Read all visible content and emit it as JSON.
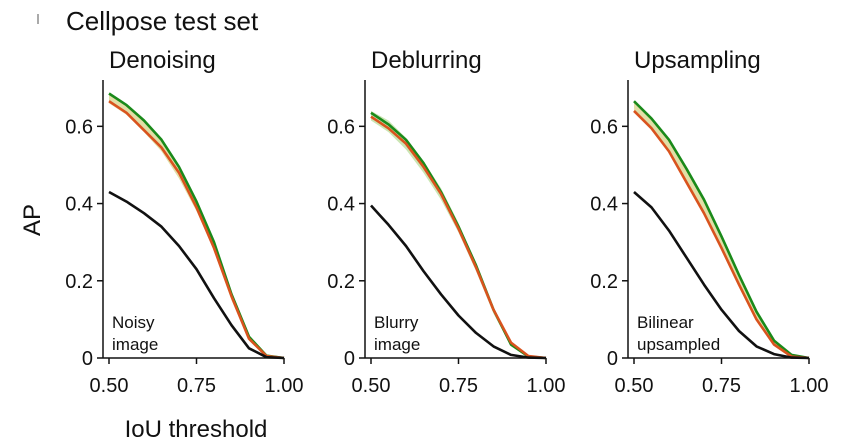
{
  "figure": {
    "title": "Cellpose test set",
    "ylabel": "AP",
    "xlabel": "IoU threshold"
  },
  "chart_data": [
    {
      "type": "line",
      "title": "Denoising",
      "annotation": [
        "Noisy",
        "image"
      ],
      "xlabel": "IoU threshold",
      "ylabel": "AP",
      "xlim": [
        0.5,
        1.0
      ],
      "ylim": [
        0,
        0.72
      ],
      "xticks": [
        "0.50",
        "0.75",
        "1.00"
      ],
      "yticks": [
        "0",
        "0.2",
        "0.4",
        "0.6"
      ],
      "x": [
        0.5,
        0.55,
        0.6,
        0.65,
        0.7,
        0.75,
        0.8,
        0.85,
        0.9,
        0.95,
        1.0
      ],
      "series": [
        {
          "color": "#d7d48a",
          "band": true,
          "upper": [
            0.685,
            0.655,
            0.615,
            0.565,
            0.495,
            0.405,
            0.3,
            0.165,
            0.055,
            0.006,
            0.0
          ],
          "lower": [
            0.66,
            0.63,
            0.585,
            0.535,
            0.465,
            0.38,
            0.28,
            0.15,
            0.045,
            0.003,
            0.0
          ]
        },
        {
          "color": "#1a8a1a",
          "values": [
            0.685,
            0.655,
            0.615,
            0.565,
            0.495,
            0.405,
            0.3,
            0.165,
            0.055,
            0.006,
            0.0
          ]
        },
        {
          "color": "#d9531e",
          "values": [
            0.665,
            0.635,
            0.59,
            0.545,
            0.48,
            0.39,
            0.285,
            0.16,
            0.05,
            0.005,
            0.0
          ]
        },
        {
          "color": "#111111",
          "values": [
            0.43,
            0.405,
            0.375,
            0.34,
            0.29,
            0.23,
            0.155,
            0.085,
            0.025,
            0.002,
            0.0
          ]
        }
      ]
    },
    {
      "type": "line",
      "title": "Deblurring",
      "annotation": [
        "Blurry",
        "image"
      ],
      "xlabel": "IoU threshold",
      "ylabel": "AP",
      "xlim": [
        0.5,
        1.0
      ],
      "ylim": [
        0,
        0.72
      ],
      "xticks": [
        "0.50",
        "0.75",
        "1.00"
      ],
      "yticks": [
        "0",
        "0.2",
        "0.4",
        "0.6"
      ],
      "x": [
        0.5,
        0.55,
        0.6,
        0.65,
        0.7,
        0.75,
        0.8,
        0.85,
        0.9,
        0.95,
        1.0
      ],
      "series": [
        {
          "color": "#b8dc9a",
          "band": true,
          "upper": [
            0.64,
            0.615,
            0.57,
            0.51,
            0.44,
            0.35,
            0.245,
            0.13,
            0.04,
            0.005,
            0.0
          ],
          "lower": [
            0.615,
            0.585,
            0.54,
            0.48,
            0.41,
            0.325,
            0.225,
            0.115,
            0.03,
            0.003,
            0.0
          ]
        },
        {
          "color": "#1a8a1a",
          "values": [
            0.635,
            0.605,
            0.565,
            0.505,
            0.43,
            0.34,
            0.24,
            0.125,
            0.035,
            0.004,
            0.0
          ]
        },
        {
          "color": "#d9531e",
          "values": [
            0.625,
            0.595,
            0.555,
            0.495,
            0.425,
            0.335,
            0.235,
            0.125,
            0.04,
            0.005,
            0.0
          ]
        },
        {
          "color": "#111111",
          "values": [
            0.395,
            0.345,
            0.29,
            0.225,
            0.165,
            0.11,
            0.065,
            0.03,
            0.008,
            0.001,
            0.0
          ]
        }
      ]
    },
    {
      "type": "line",
      "title": "Upsampling",
      "annotation": [
        "Bilinear",
        "upsampled"
      ],
      "xlabel": "IoU threshold",
      "ylabel": "AP",
      "xlim": [
        0.5,
        1.0
      ],
      "ylim": [
        0,
        0.72
      ],
      "xticks": [
        "0.50",
        "0.75",
        "1.00"
      ],
      "yticks": [
        "0",
        "0.2",
        "0.4",
        "0.6"
      ],
      "x": [
        0.5,
        0.55,
        0.6,
        0.65,
        0.7,
        0.75,
        0.8,
        0.85,
        0.9,
        0.95,
        1.0
      ],
      "series": [
        {
          "color": "#d7d48a",
          "band": true,
          "upper": [
            0.665,
            0.62,
            0.565,
            0.49,
            0.41,
            0.315,
            0.215,
            0.12,
            0.045,
            0.008,
            0.0
          ],
          "lower": [
            0.64,
            0.595,
            0.535,
            0.455,
            0.375,
            0.285,
            0.19,
            0.1,
            0.035,
            0.004,
            0.0
          ]
        },
        {
          "color": "#1a8a1a",
          "values": [
            0.665,
            0.62,
            0.565,
            0.49,
            0.41,
            0.315,
            0.215,
            0.12,
            0.045,
            0.008,
            0.0
          ]
        },
        {
          "color": "#d9531e",
          "values": [
            0.64,
            0.595,
            0.535,
            0.455,
            0.375,
            0.285,
            0.19,
            0.1,
            0.035,
            0.004,
            0.0
          ]
        },
        {
          "color": "#111111",
          "values": [
            0.43,
            0.39,
            0.33,
            0.26,
            0.19,
            0.125,
            0.07,
            0.03,
            0.01,
            0.001,
            0.0
          ]
        }
      ]
    }
  ]
}
